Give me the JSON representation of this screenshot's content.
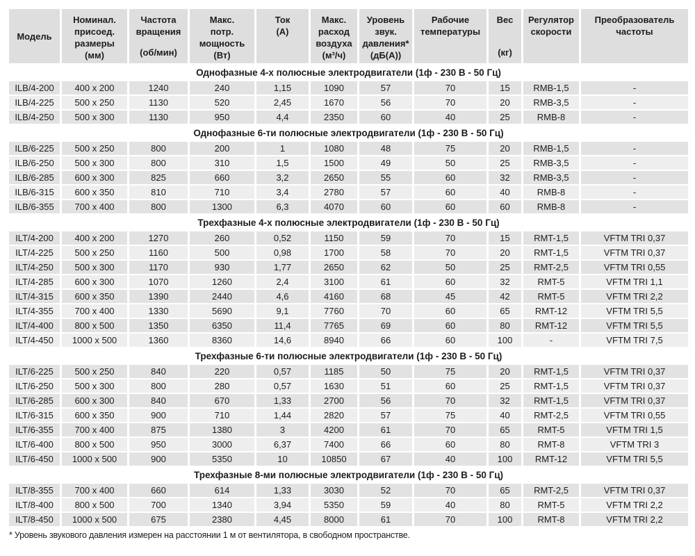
{
  "colors": {
    "header_bg": "#dedede",
    "row_dark_bg": "#e2e2e2",
    "row_light_bg": "#eeeeee",
    "text": "#1c1c1c"
  },
  "columns": [
    {
      "title": [
        "Модель"
      ],
      "unit": ""
    },
    {
      "title": [
        "Номинал.",
        "присоед.",
        "размеры"
      ],
      "unit": "(мм)"
    },
    {
      "title": [
        "Частота",
        "вращения"
      ],
      "unit": "(об/мин)"
    },
    {
      "title": [
        "Макс.",
        "потр.",
        "мощность"
      ],
      "unit": "(Вт)"
    },
    {
      "title": [
        "Ток"
      ],
      "unit": "(А)"
    },
    {
      "title": [
        "Макс.",
        "расход",
        "воздуха"
      ],
      "unit": "(м³/ч)"
    },
    {
      "title": [
        "Уровень",
        "звук.",
        "давления*"
      ],
      "unit": "(дБ(А))"
    },
    {
      "title": [
        "Рабочие",
        "температуры"
      ],
      "unit": ""
    },
    {
      "title": [
        "Вес"
      ],
      "unit": "(кг)"
    },
    {
      "title": [
        "Регулятор",
        "скорости"
      ],
      "unit": ""
    },
    {
      "title": [
        "Преобразователь",
        "частоты"
      ],
      "unit": ""
    }
  ],
  "sections": [
    {
      "header": "Однофазные 4-х полюсные электродвигатели (1ф - 230 В - 50 Гц)",
      "rows": [
        [
          "ILB/4-200",
          "400 x 200",
          "1240",
          "240",
          "1,15",
          "1090",
          "57",
          "70",
          "15",
          "RMB-1,5",
          "-"
        ],
        [
          "ILB/4-225",
          "500 x 250",
          "1130",
          "520",
          "2,45",
          "1670",
          "56",
          "70",
          "20",
          "RMB-3,5",
          "-"
        ],
        [
          "ILB/4-250",
          "500 x 300",
          "1130",
          "950",
          "4,4",
          "2350",
          "60",
          "40",
          "25",
          "RMB-8",
          "-"
        ]
      ]
    },
    {
      "header": "Однофазные 6-ти полюсные электродвигатели (1ф - 230 В - 50 Гц)",
      "rows": [
        [
          "ILB/6-225",
          "500 x 250",
          "800",
          "200",
          "1",
          "1080",
          "48",
          "75",
          "20",
          "RMB-1,5",
          "-"
        ],
        [
          "ILB/6-250",
          "500 x 300",
          "800",
          "310",
          "1,5",
          "1500",
          "49",
          "50",
          "25",
          "RMB-3,5",
          "-"
        ],
        [
          "ILB/6-285",
          "600 x 300",
          "825",
          "660",
          "3,2",
          "2650",
          "55",
          "60",
          "32",
          "RMB-3,5",
          "-"
        ],
        [
          "ILB/6-315",
          "600 x 350",
          "810",
          "710",
          "3,4",
          "2780",
          "57",
          "60",
          "40",
          "RMB-8",
          "-"
        ],
        [
          "ILB/6-355",
          "700 x 400",
          "800",
          "1300",
          "6,3",
          "4070",
          "60",
          "60",
          "60",
          "RMB-8",
          "-"
        ]
      ]
    },
    {
      "header": "Трехфазные 4-х полюсные электродвигатели (1ф - 230 В - 50 Гц)",
      "rows": [
        [
          "ILT/4-200",
          "400 x 200",
          "1270",
          "260",
          "0,52",
          "1150",
          "59",
          "70",
          "15",
          "RMT-1,5",
          "VFTM TRI 0,37"
        ],
        [
          "ILT/4-225",
          "500 x 250",
          "1160",
          "500",
          "0,98",
          "1700",
          "58",
          "70",
          "20",
          "RMT-1,5",
          "VFTM TRI 0,37"
        ],
        [
          "ILT/4-250",
          "500 x 300",
          "1170",
          "930",
          "1,77",
          "2650",
          "62",
          "50",
          "25",
          "RMT-2,5",
          "VFTM TRI 0,55"
        ],
        [
          "ILT/4-285",
          "600 x 300",
          "1070",
          "1260",
          "2,4",
          "3100",
          "61",
          "60",
          "32",
          "RMT-5",
          "VFTM TRI 1,1"
        ],
        [
          "ILT/4-315",
          "600 x 350",
          "1390",
          "2440",
          "4,6",
          "4160",
          "68",
          "45",
          "42",
          "RMT-5",
          "VFTM TRI 2,2"
        ],
        [
          "ILT/4-355",
          "700 x 400",
          "1330",
          "5690",
          "9,1",
          "7760",
          "70",
          "60",
          "65",
          "RMT-12",
          "VFTM TRI 5,5"
        ],
        [
          "ILT/4-400",
          "800 x 500",
          "1350",
          "6350",
          "11,4",
          "7765",
          "69",
          "60",
          "80",
          "RMT-12",
          "VFTM TRI 5,5"
        ],
        [
          "ILT/4-450",
          "1000 x 500",
          "1360",
          "8360",
          "14,6",
          "8940",
          "66",
          "60",
          "100",
          "-",
          "VFTM TRI 7,5"
        ]
      ]
    },
    {
      "header": "Трехфазные 6-ти полюсные электродвигатели (1ф - 230 В - 50 Гц)",
      "rows": [
        [
          "ILT/6-225",
          "500 x 250",
          "840",
          "220",
          "0,57",
          "1185",
          "50",
          "75",
          "20",
          "RMT-1,5",
          "VFTM TRI 0,37"
        ],
        [
          "ILT/6-250",
          "500 x 300",
          "800",
          "280",
          "0,57",
          "1630",
          "51",
          "60",
          "25",
          "RMT-1,5",
          "VFTM TRI 0,37"
        ],
        [
          "ILT/6-285",
          "600 x 300",
          "840",
          "670",
          "1,33",
          "2700",
          "56",
          "70",
          "32",
          "RMT-1,5",
          "VFTM TRI 0,37"
        ],
        [
          "ILT/6-315",
          "600 x 350",
          "900",
          "710",
          "1,44",
          "2820",
          "57",
          "75",
          "40",
          "RMT-2,5",
          "VFTM TRI 0,55"
        ],
        [
          "ILT/6-355",
          "700 x 400",
          "875",
          "1380",
          "3",
          "4200",
          "61",
          "70",
          "65",
          "RMT-5",
          "VFTM TRI 1,5"
        ],
        [
          "ILT/6-400",
          "800 x 500",
          "950",
          "3000",
          "6,37",
          "7400",
          "66",
          "60",
          "80",
          "RMT-8",
          "VFTM TRI 3"
        ],
        [
          "ILT/6-450",
          "1000 x 500",
          "900",
          "5350",
          "10",
          "10850",
          "67",
          "40",
          "100",
          "RMT-12",
          "VFTM TRI 5,5"
        ]
      ]
    },
    {
      "header": "Трехфазные 8-ми полюсные электродвигатели (1ф - 230 В - 50 Гц)",
      "rows": [
        [
          "ILT/8-355",
          "700 x 400",
          "660",
          "614",
          "1,33",
          "3030",
          "52",
          "70",
          "65",
          "RMT-2,5",
          "VFTM TRI 0,37"
        ],
        [
          "ILT/8-400",
          "800 x 500",
          "700",
          "1340",
          "3,94",
          "5350",
          "59",
          "40",
          "80",
          "RMT-5",
          "VFTM TRI 2,2"
        ],
        [
          "ILT/8-450",
          "1000 x 500",
          "675",
          "2380",
          "4,45",
          "8000",
          "61",
          "70",
          "100",
          "RMT-8",
          "VFTM TRI 2,2"
        ]
      ]
    }
  ],
  "footnote": "* Уровень звукового давления измерен на расстоянии 1 м от вентилятора, в свободном пространстве."
}
